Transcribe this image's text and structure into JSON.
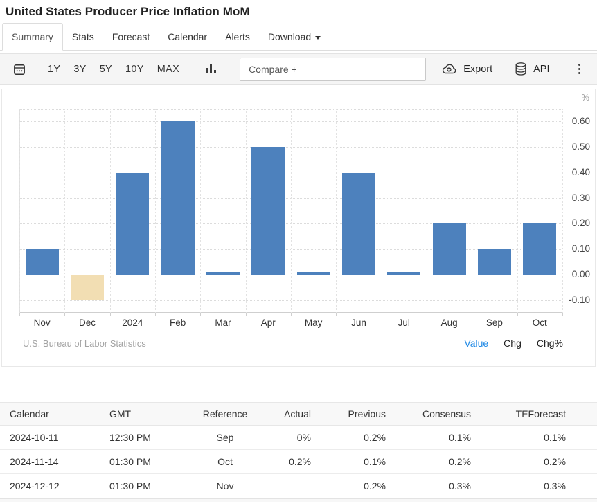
{
  "page": {
    "title": "United States Producer Price Inflation MoM"
  },
  "tabs": [
    {
      "label": "Summary",
      "active": true
    },
    {
      "label": "Stats"
    },
    {
      "label": "Forecast"
    },
    {
      "label": "Calendar"
    },
    {
      "label": "Alerts"
    },
    {
      "label": "Download",
      "has_caret": true
    }
  ],
  "toolbar": {
    "ranges": [
      "1Y",
      "3Y",
      "5Y",
      "10Y",
      "MAX"
    ],
    "compare_placeholder": "Compare +",
    "export_label": "Export",
    "api_label": "API"
  },
  "chart_data": {
    "type": "bar",
    "title": "United States Producer Price Inflation MoM",
    "unit": "%",
    "categories": [
      "Nov",
      "Dec",
      "2024",
      "Feb",
      "Mar",
      "Apr",
      "May",
      "Jun",
      "Jul",
      "Aug",
      "Sep",
      "Oct"
    ],
    "values": [
      0.1,
      -0.1,
      0.4,
      0.6,
      0.01,
      0.5,
      0.01,
      0.4,
      0.01,
      0.2,
      0.1,
      0.2
    ],
    "ylim": [
      -0.15,
      0.65
    ],
    "yticks": [
      0.6,
      0.5,
      0.4,
      0.3,
      0.2,
      0.1,
      0.0,
      -0.1
    ],
    "ytick_labels": [
      "0.60",
      "0.50",
      "0.40",
      "0.30",
      "0.20",
      "0.10",
      "0.00",
      "-0.10"
    ],
    "grid": "dotted",
    "legend": "none",
    "bar_color": "#4d81bd",
    "negative_bar_color": "#f2deb3",
    "source": "U.S. Bureau of Labor Statistics",
    "views": [
      "Value",
      "Chg",
      "Chg%"
    ],
    "active_view": "Value"
  },
  "table": {
    "headers": [
      "Calendar",
      "GMT",
      "Reference",
      "Actual",
      "Previous",
      "Consensus",
      "TEForecast"
    ],
    "rows": [
      [
        "2024-10-11",
        "12:30 PM",
        "Sep",
        "0%",
        "0.2%",
        "0.1%",
        "0.1%"
      ],
      [
        "2024-11-14",
        "01:30 PM",
        "Oct",
        "0.2%",
        "0.1%",
        "0.2%",
        "0.2%"
      ],
      [
        "2024-12-12",
        "01:30 PM",
        "Nov",
        "",
        "0.2%",
        "0.3%",
        "0.3%"
      ]
    ]
  },
  "colors": {
    "accent_link": "#1e88e5",
    "bar": "#4d81bd",
    "negative_bar": "#f2deb3",
    "toolbar_bg": "#f5f5f5"
  }
}
